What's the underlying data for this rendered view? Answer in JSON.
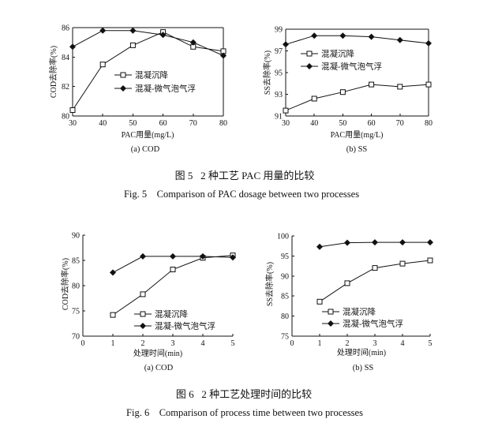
{
  "figures": [
    {
      "caption_cn": "图 5   2 种工艺 PAC 用量的比较",
      "caption_en": "Fig. 5    Comparison of PAC dosage between two processes"
    },
    {
      "caption_cn": "图 6   2 种工艺处理时间的比较",
      "caption_en": "Fig. 6    Comparison of process time between two processes"
    }
  ],
  "chart_data": [
    {
      "type": "line",
      "subcaption": "(a) COD",
      "xlabel": "PAC用量(mg/L)",
      "ylabel": "COD去除率(%)",
      "xlim": [
        30,
        80
      ],
      "ylim": [
        80,
        86
      ],
      "xticks": [
        30,
        40,
        50,
        60,
        70,
        80
      ],
      "yticks": [
        80,
        82,
        84,
        86
      ],
      "frame": "box",
      "grid": false,
      "legend": "center",
      "x": [
        30,
        40,
        50,
        60,
        70,
        80
      ],
      "series": [
        {
          "name": "混凝沉降",
          "marker": "open-square",
          "values": [
            80.4,
            83.5,
            84.8,
            85.7,
            84.7,
            84.4
          ]
        },
        {
          "name": "混凝-微气泡气浮",
          "marker": "filled-diamond",
          "values": [
            84.7,
            85.8,
            85.8,
            85.5,
            85.0,
            84.1
          ]
        }
      ]
    },
    {
      "type": "line",
      "subcaption": "(b) SS",
      "xlabel": "PAC用量(mg/L)",
      "ylabel": "SS去除率(%)",
      "xlim": [
        30,
        80
      ],
      "ylim": [
        91,
        99
      ],
      "xticks": [
        30,
        40,
        50,
        60,
        70,
        80
      ],
      "yticks": [
        91,
        93,
        95,
        97,
        99
      ],
      "frame": "box",
      "grid": false,
      "legend": "upper-left",
      "x": [
        30,
        40,
        50,
        60,
        70,
        80
      ],
      "series": [
        {
          "name": "混凝沉降",
          "marker": "open-square",
          "values": [
            91.5,
            92.6,
            93.2,
            93.9,
            93.7,
            93.9
          ]
        },
        {
          "name": "混凝-微气泡气浮",
          "marker": "filled-diamond",
          "values": [
            97.6,
            98.4,
            98.4,
            98.3,
            98.0,
            97.7
          ]
        }
      ]
    },
    {
      "type": "line",
      "subcaption": "(a) COD",
      "xlabel": "处理时间(min)",
      "ylabel": "COD去除率(%)",
      "xlim": [
        0,
        5
      ],
      "ylim": [
        70,
        90
      ],
      "xticks": [
        0,
        1,
        2,
        3,
        4,
        5
      ],
      "yticks": [
        70,
        75,
        80,
        85,
        90
      ],
      "frame": "axes",
      "grid": false,
      "legend": "lower-right",
      "x": [
        1,
        2,
        3,
        4,
        5
      ],
      "series": [
        {
          "name": "混凝沉降",
          "marker": "open-square",
          "values": [
            74.2,
            78.3,
            83.2,
            85.5,
            86.0
          ]
        },
        {
          "name": "混凝-微气泡气浮",
          "marker": "filled-diamond",
          "values": [
            82.6,
            85.8,
            85.8,
            85.8,
            85.6
          ]
        }
      ]
    },
    {
      "type": "line",
      "subcaption": "(b) SS",
      "xlabel": "处理时间(min)",
      "ylabel": "SS去除率(%)",
      "xlim": [
        0,
        5
      ],
      "ylim": [
        75,
        100
      ],
      "xticks": [
        0,
        1,
        2,
        3,
        4,
        5
      ],
      "yticks": [
        75,
        80,
        85,
        90,
        95,
        100
      ],
      "frame": "axes",
      "grid": false,
      "legend": "lower-right",
      "x": [
        1,
        2,
        3,
        4,
        5
      ],
      "series": [
        {
          "name": "混凝沉降",
          "marker": "open-square",
          "values": [
            83.6,
            88.2,
            92.0,
            93.1,
            93.9
          ]
        },
        {
          "name": "混凝-微气泡气浮",
          "marker": "filled-diamond",
          "values": [
            97.3,
            98.3,
            98.4,
            98.4,
            98.4
          ]
        }
      ]
    }
  ]
}
